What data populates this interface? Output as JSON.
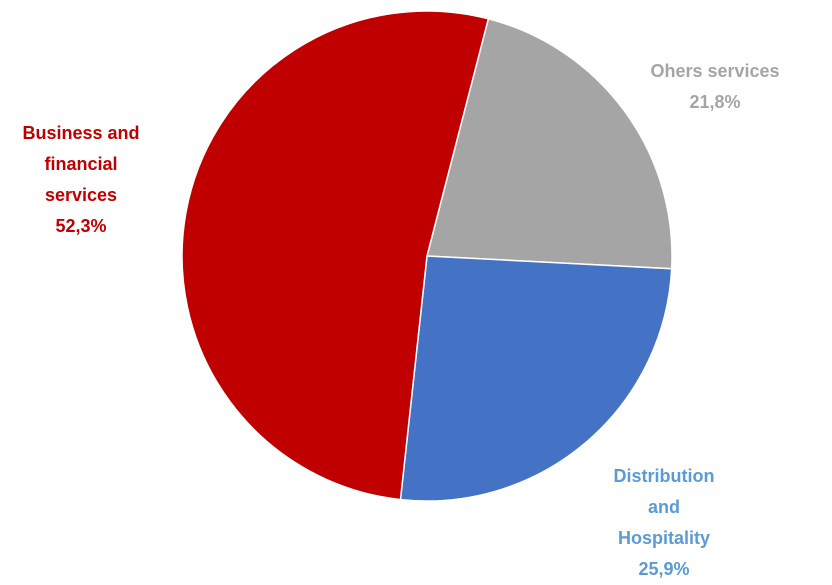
{
  "chart_data": {
    "type": "pie",
    "title": "",
    "categories": [
      "Business and financial services",
      "Ohers services",
      "Distribution and Hospitality"
    ],
    "values": [
      52.3,
      21.8,
      25.9
    ],
    "unit": "%",
    "colors": [
      "#c00000",
      "#a5a5a5",
      "#4472c4"
    ],
    "label_colors": [
      "#c00000",
      "#a5a5a5",
      "#5b9bd5"
    ],
    "labels": [
      {
        "lines": [
          "Business and",
          "financial",
          "services"
        ],
        "value_text": "52,3%"
      },
      {
        "lines": [
          "Ohers services"
        ],
        "value_text": "21,8%"
      },
      {
        "lines": [
          "Distribution",
          "and",
          "Hospitality"
        ],
        "value_text": "25,9%"
      }
    ],
    "legend": "none",
    "label_placement": "outside"
  }
}
